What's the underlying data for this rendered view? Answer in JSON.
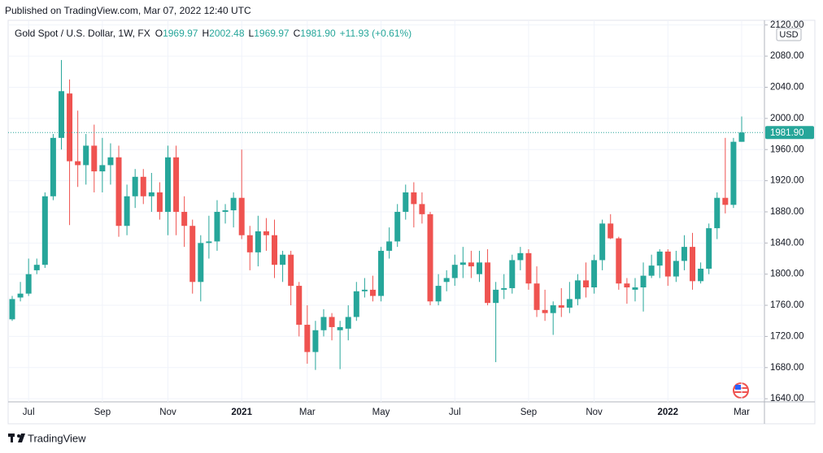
{
  "header": {
    "published": "Published on TradingView.com, Mar 07, 2022 12:40 UTC",
    "footer": "TradingView"
  },
  "chart_data": {
    "type": "candlestick",
    "legend": {
      "symbol": "Gold Spot / U.S. Dollar, 1W, FX",
      "items": [
        {
          "label": "O",
          "value": "1969.97"
        },
        {
          "label": "H",
          "value": "2002.48"
        },
        {
          "label": "L",
          "value": "1969.97"
        },
        {
          "label": "C",
          "value": "1981.90"
        }
      ],
      "change": "+11.93 (+0.61%)"
    },
    "currency": "USD",
    "price_label": "1981.90",
    "up_color": "#26a69a",
    "down_color": "#ef5350",
    "grid": true,
    "categories": [
      null,
      null,
      "Jul",
      null,
      null,
      null,
      null,
      null,
      null,
      null,
      null,
      "Sep",
      null,
      null,
      null,
      null,
      null,
      null,
      null,
      "Nov",
      null,
      null,
      null,
      null,
      null,
      null,
      null,
      null,
      "2021",
      null,
      null,
      null,
      null,
      null,
      null,
      null,
      "Mar",
      null,
      null,
      null,
      null,
      null,
      null,
      null,
      null,
      "May",
      null,
      null,
      null,
      null,
      null,
      null,
      null,
      null,
      "Jul",
      null,
      null,
      null,
      null,
      null,
      null,
      null,
      null,
      "Sep",
      null,
      null,
      null,
      null,
      null,
      null,
      null,
      "Nov",
      null,
      null,
      null,
      null,
      null,
      null,
      null,
      null,
      "2022",
      null,
      null,
      null,
      null,
      null,
      null,
      null,
      null,
      "Mar"
    ],
    "open": [
      1742,
      1770,
      1775,
      1805,
      1812,
      1900,
      1975,
      2032,
      1945,
      1940,
      1965,
      1932,
      1940,
      1950,
      1862,
      1900,
      1925,
      1900,
      1905,
      1880,
      1950,
      1880,
      1862,
      1790,
      1840,
      1842,
      1880,
      1882,
      1898,
      1850,
      1828,
      1855,
      1850,
      1812,
      1825,
      1785,
      1735,
      1700,
      1728,
      1745,
      1728,
      1730,
      1745,
      1778,
      1780,
      1772,
      1830,
      1842,
      1880,
      1905,
      1890,
      1877,
      1765,
      1790,
      1795,
      1812,
      1815,
      1800,
      1815,
      1763,
      1780,
      1782,
      1818,
      1827,
      1788,
      1754,
      1750,
      1760,
      1757,
      1768,
      1792,
      1783,
      1818,
      1865,
      1846,
      1788,
      1780,
      1783,
      1798,
      1811,
      1829,
      1797,
      1817,
      1835,
      1791,
      1807,
      1859,
      1898,
      1889,
      1969.97
    ],
    "high": [
      1772,
      1790,
      1820,
      1820,
      1905,
      1980,
      2075,
      2050,
      2010,
      1980,
      1992,
      1975,
      1968,
      1965,
      1915,
      1935,
      1935,
      1930,
      1918,
      1965,
      1965,
      1900,
      1870,
      1850,
      1875,
      1895,
      1890,
      1905,
      1960,
      1862,
      1875,
      1872,
      1870,
      1830,
      1830,
      1790,
      1760,
      1740,
      1755,
      1750,
      1740,
      1760,
      1790,
      1795,
      1798,
      1835,
      1860,
      1890,
      1915,
      1918,
      1905,
      1880,
      1800,
      1805,
      1825,
      1835,
      1830,
      1830,
      1832,
      1790,
      1800,
      1825,
      1835,
      1832,
      1810,
      1780,
      1765,
      1782,
      1790,
      1800,
      1815,
      1825,
      1870,
      1877,
      1848,
      1795,
      1795,
      1815,
      1825,
      1832,
      1832,
      1830,
      1850,
      1853,
      1815,
      1865,
      1905,
      1975,
      1975,
      2002.48
    ],
    "low": [
      1740,
      1765,
      1772,
      1800,
      1808,
      1895,
      1960,
      1863,
      1912,
      1915,
      1905,
      1905,
      1915,
      1848,
      1850,
      1885,
      1890,
      1880,
      1870,
      1850,
      1850,
      1835,
      1775,
      1765,
      1820,
      1830,
      1865,
      1860,
      1845,
      1805,
      1810,
      1830,
      1795,
      1790,
      1760,
      1720,
      1685,
      1677,
      1720,
      1715,
      1678,
      1715,
      1740,
      1770,
      1765,
      1765,
      1820,
      1835,
      1870,
      1860,
      1865,
      1760,
      1760,
      1778,
      1785,
      1795,
      1795,
      1790,
      1760,
      1687,
      1768,
      1775,
      1805,
      1780,
      1745,
      1740,
      1722,
      1745,
      1750,
      1760,
      1770,
      1775,
      1805,
      1845,
      1780,
      1762,
      1765,
      1752,
      1795,
      1795,
      1785,
      1790,
      1805,
      1780,
      1788,
      1800,
      1845,
      1878,
      1885,
      1969.97
    ],
    "close": [
      1768,
      1775,
      1800,
      1812,
      1900,
      1975,
      2035,
      1945,
      1940,
      1965,
      1932,
      1940,
      1950,
      1862,
      1900,
      1925,
      1900,
      1905,
      1880,
      1950,
      1880,
      1862,
      1790,
      1840,
      1842,
      1880,
      1882,
      1898,
      1850,
      1828,
      1855,
      1850,
      1812,
      1825,
      1785,
      1735,
      1700,
      1728,
      1745,
      1732,
      1732,
      1745,
      1778,
      1780,
      1772,
      1830,
      1842,
      1880,
      1905,
      1890,
      1877,
      1765,
      1785,
      1795,
      1812,
      1815,
      1810,
      1815,
      1763,
      1780,
      1782,
      1818,
      1827,
      1788,
      1754,
      1750,
      1760,
      1757,
      1768,
      1792,
      1783,
      1818,
      1865,
      1846,
      1788,
      1783,
      1783,
      1798,
      1811,
      1829,
      1797,
      1817,
      1835,
      1791,
      1807,
      1859,
      1898,
      1889,
      1970,
      1981.9
    ],
    "ylim": [
      1636,
      2126
    ],
    "yticks": [
      {
        "value": 1640,
        "label": "1640.00"
      },
      {
        "value": 1680,
        "label": "1680.00"
      },
      {
        "value": 1720,
        "label": "1720.00"
      },
      {
        "value": 1760,
        "label": "1760.00"
      },
      {
        "value": 1800,
        "label": "1800.00"
      },
      {
        "value": 1840,
        "label": "1840.00"
      },
      {
        "value": 1880,
        "label": "1880.00"
      },
      {
        "value": 1920,
        "label": "1920.00"
      },
      {
        "value": 1960,
        "label": "1960.00"
      },
      {
        "value": 2000,
        "label": "2000.00"
      },
      {
        "value": 2040,
        "label": "2040.00"
      },
      {
        "value": 2080,
        "label": "2080.00"
      },
      {
        "value": 2120,
        "label": "2120.00"
      }
    ]
  }
}
